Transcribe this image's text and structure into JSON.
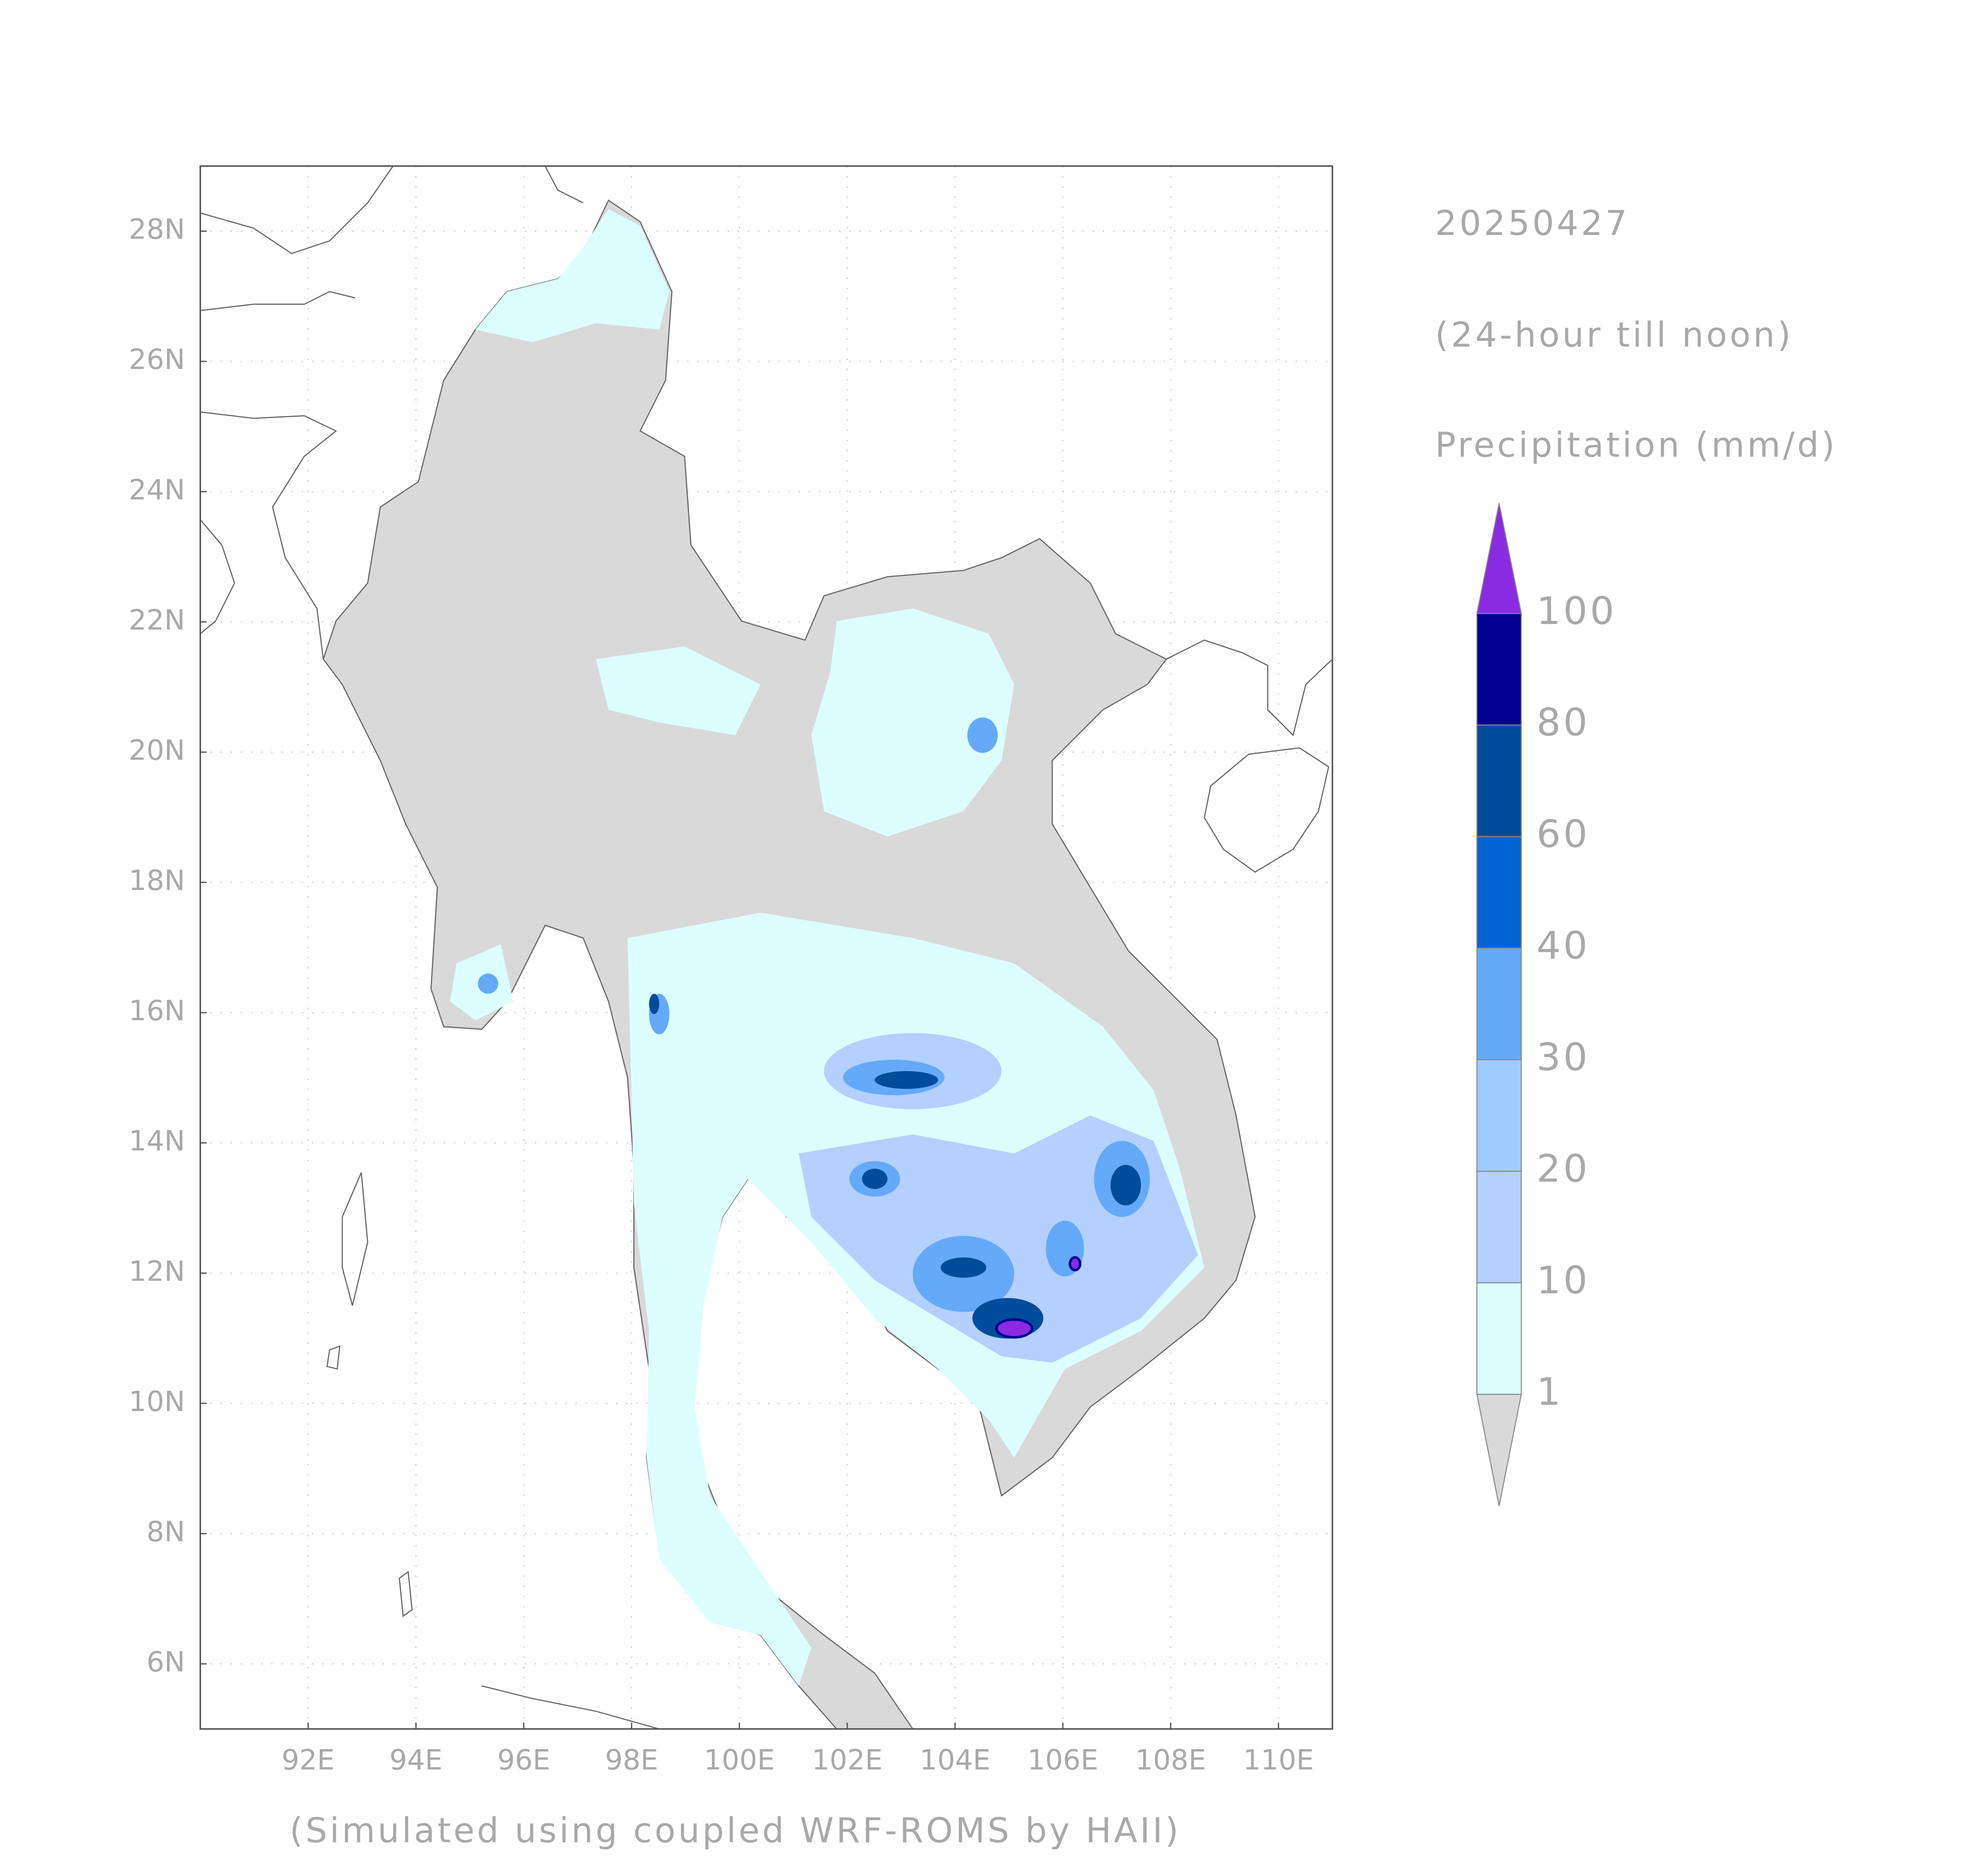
{
  "map": {
    "date": "20250427",
    "period": "(24-hour till noon)",
    "variable": "Precipitation (mm/d)",
    "footer": "(Simulated using coupled WRF-ROMS by HAII)",
    "lon_range": [
      90,
      111
    ],
    "lat_range": [
      5,
      29
    ],
    "lon_ticks": [
      {
        "value": 92,
        "label": "92E"
      },
      {
        "value": 94,
        "label": "94E"
      },
      {
        "value": 96,
        "label": "96E"
      },
      {
        "value": 98,
        "label": "98E"
      },
      {
        "value": 100,
        "label": "100E"
      },
      {
        "value": 102,
        "label": "102E"
      },
      {
        "value": 104,
        "label": "104E"
      },
      {
        "value": 106,
        "label": "106E"
      },
      {
        "value": 108,
        "label": "108E"
      },
      {
        "value": 110,
        "label": "110E"
      }
    ],
    "lat_ticks": [
      {
        "value": 6,
        "label": "6N"
      },
      {
        "value": 8,
        "label": "8N"
      },
      {
        "value": 10,
        "label": "10N"
      },
      {
        "value": 12,
        "label": "12N"
      },
      {
        "value": 14,
        "label": "14N"
      },
      {
        "value": 16,
        "label": "16N"
      },
      {
        "value": 18,
        "label": "18N"
      },
      {
        "value": 20,
        "label": "20N"
      },
      {
        "value": 22,
        "label": "22N"
      },
      {
        "value": 24,
        "label": "24N"
      },
      {
        "value": 26,
        "label": "26N"
      },
      {
        "value": 28,
        "label": "28N"
      }
    ],
    "colorbar": {
      "levels": [
        1,
        10,
        20,
        30,
        40,
        60,
        80,
        100
      ],
      "under_color": "#d9d9d9",
      "colors": [
        "#dcfefe",
        "#b4d0ff",
        "#a0ccff",
        "#64aaf8",
        "#0064d2",
        "#004c9a",
        "#000090"
      ],
      "over_color": "#8a2be2"
    }
  }
}
